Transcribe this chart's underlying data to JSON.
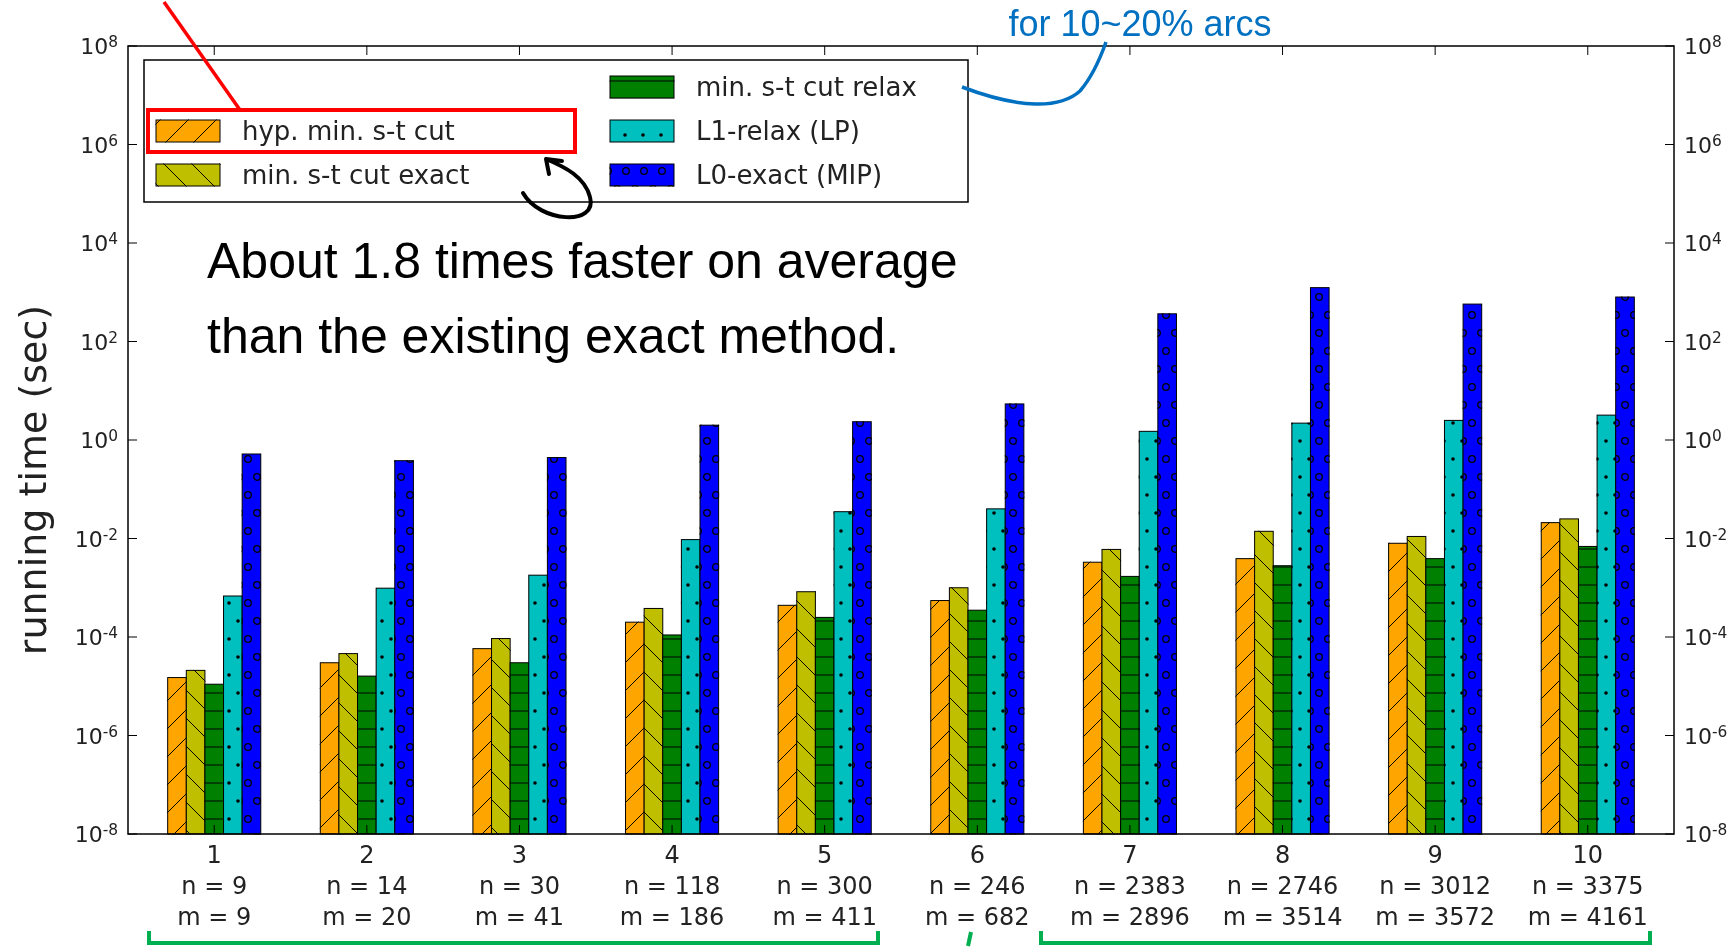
{
  "chart_data": {
    "type": "bar",
    "categories": [
      "1\nn = 9\nm = 9",
      "2\nn = 14\nm = 20",
      "3\nn = 30\nm = 41",
      "4\nn = 118\nm = 186",
      "5\nn = 300\nm = 411",
      "6\nn = 246\nm = 682",
      "7\nn = 2383\nm = 2896",
      "8\nn = 2746\nm = 3514",
      "9\nn = 3012\nm = 3572",
      "10\nn = 3375\nm = 4161"
    ],
    "series": [
      {
        "name": "hyp. min. s-t cut",
        "color": "#ffa500",
        "values": [
          1.5e-05,
          3e-05,
          5.8e-05,
          0.0002,
          0.00044,
          0.00055,
          0.0033,
          0.0039,
          0.008,
          0.021
        ]
      },
      {
        "name": "min. s-t cut exact",
        "color": "#bfbf00",
        "values": [
          2.1e-05,
          4.6e-05,
          9.3e-05,
          0.00038,
          0.00083,
          0.001,
          0.006,
          0.014,
          0.011,
          0.025
        ]
      },
      {
        "name": "min. s-t cut relax",
        "color": "#008000",
        "values": [
          1.1e-05,
          1.6e-05,
          3e-05,
          0.00011,
          0.00025,
          0.00035,
          0.0017,
          0.0028,
          0.0039,
          0.0069
        ]
      },
      {
        "name": "L1-relax (LP)",
        "color": "#00bfbf",
        "values": [
          0.00068,
          0.00098,
          0.0018,
          0.0095,
          0.035,
          0.04,
          1.5,
          2.2,
          2.5,
          3.2
        ]
      },
      {
        "name": "L0-exact (MIP)",
        "color": "#0000ff",
        "values": [
          0.52,
          0.38,
          0.44,
          2,
          2.35,
          5.4,
          365,
          1240,
          575,
          800
        ]
      }
    ],
    "ylabel": "running time (sec)",
    "log": "y",
    "ylim": [
      1e-08,
      100000000.0
    ],
    "yticks": [
      {
        "value": 1e-08,
        "label": "10$^{-8}$"
      },
      {
        "value": 1e-06,
        "label": "10$^{-6}$"
      },
      {
        "value": 0.0001,
        "label": "10$^{-4}$"
      },
      {
        "value": 0.01,
        "label": "10$^{-2}$"
      },
      {
        "value": 1,
        "label": "10$^{0}$"
      },
      {
        "value": 100,
        "label": "10$^{2}$"
      },
      {
        "value": 10000.0,
        "label": "10$^{4}$"
      },
      {
        "value": 1000000.0,
        "label": "10$^{6}$"
      },
      {
        "value": 100000000.0,
        "label": "10$^{8}$"
      }
    ],
    "legend": "top left",
    "annotations": [
      "for 10~20% arcs",
      "About 1.8 times faster on average than the existing exact method."
    ]
  }
}
